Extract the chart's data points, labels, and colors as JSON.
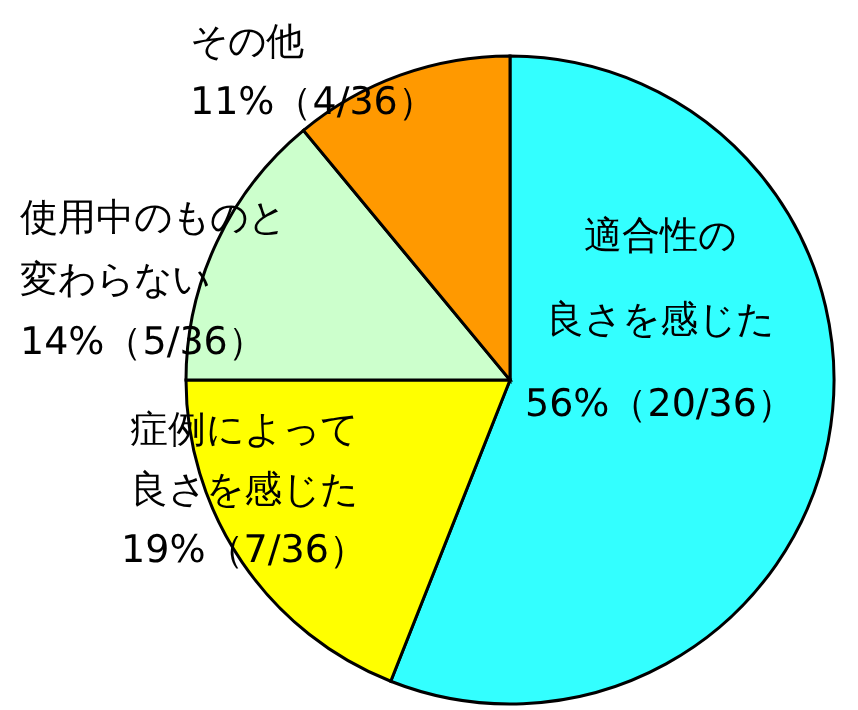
{
  "chart_data": {
    "type": "pie",
    "categories": [
      "適合性の良さを感じた",
      "症例によって良さを感じた",
      "使用中のものと変わらない",
      "その他"
    ],
    "values": [
      56,
      19,
      14,
      11
    ],
    "value_labels": [
      "56%（20/36）",
      "19%（7/36）",
      "14%（5/36）",
      "11%（4/36）"
    ],
    "colors": [
      "#33ffff",
      "#ffff00",
      "#ccffcc",
      "#ff9900"
    ]
  }
}
